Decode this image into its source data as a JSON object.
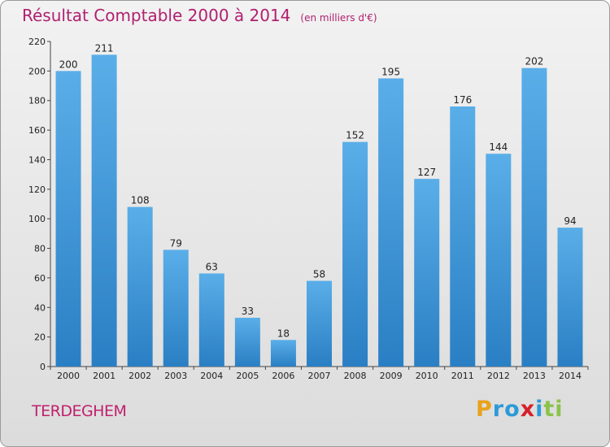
{
  "header": {
    "title": "Résultat Comptable 2000 à 2014",
    "subtitle": "(en milliers d'€)"
  },
  "commune": "TERDEGHEM",
  "logo": {
    "text": "Proxiti",
    "letters": [
      {
        "ch": "P",
        "color": "#e8a21b"
      },
      {
        "ch": "r",
        "color": "#2d9ad8"
      },
      {
        "ch": "o",
        "color": "#2d9ad8"
      },
      {
        "ch": "x",
        "color": "#d6202a"
      },
      {
        "ch": "i",
        "color": "#2d9ad8"
      },
      {
        "ch": "t",
        "color": "#8bc34a"
      },
      {
        "ch": "i",
        "color": "#8bc34a"
      }
    ]
  },
  "chart_data": {
    "type": "bar",
    "title": "Résultat Comptable 2000 à 2014",
    "subtitle": "(en milliers d'€)",
    "categories": [
      "2000",
      "2001",
      "2002",
      "2003",
      "2004",
      "2005",
      "2006",
      "2007",
      "2008",
      "2009",
      "2010",
      "2011",
      "2012",
      "2013",
      "2014"
    ],
    "values": [
      200,
      211,
      108,
      79,
      63,
      33,
      18,
      58,
      152,
      195,
      127,
      176,
      144,
      202,
      94
    ],
    "ylim": [
      0,
      220
    ],
    "yticks": [
      0,
      20,
      40,
      60,
      80,
      100,
      120,
      140,
      160,
      180,
      200,
      220
    ],
    "grid": false,
    "bar_color_top": "#5aaee8",
    "bar_color_bottom": "#2a7fc4"
  }
}
